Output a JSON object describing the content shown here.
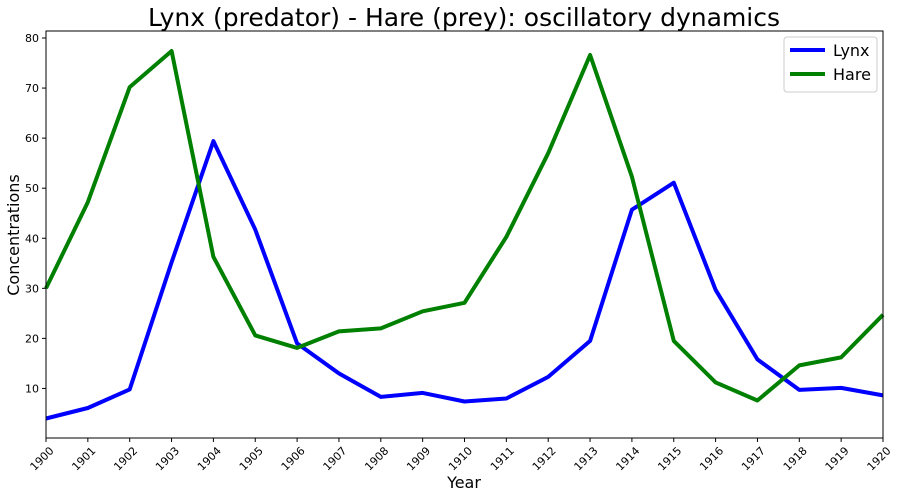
{
  "chart_data": {
    "type": "line",
    "title": "Lynx (predator) - Hare (prey): oscillatory dynamics",
    "xlabel": "Year",
    "ylabel": "Concentrations",
    "x": [
      1900,
      1901,
      1902,
      1903,
      1904,
      1905,
      1906,
      1907,
      1908,
      1909,
      1910,
      1911,
      1912,
      1913,
      1914,
      1915,
      1916,
      1917,
      1918,
      1919,
      1920
    ],
    "x_tick_labels": [
      "1900",
      "1901",
      "1902",
      "1903",
      "1904",
      "1905",
      "1906",
      "1907",
      "1908",
      "1909",
      "1910",
      "1911",
      "1912",
      "1913",
      "1914",
      "1915",
      "1916",
      "1917",
      "1918",
      "1919",
      "1920"
    ],
    "y_ticks": [
      10,
      20,
      30,
      40,
      50,
      60,
      70,
      80
    ],
    "xlim": [
      1900,
      1920
    ],
    "ylim": [
      0.1,
      81.4
    ],
    "grid": false,
    "legend_position": "top-right",
    "series": [
      {
        "name": "Lynx",
        "color": "#0000ff",
        "values": [
          4.0,
          6.1,
          9.8,
          35.2,
          59.4,
          41.7,
          19.0,
          13.0,
          8.3,
          9.1,
          7.4,
          8.0,
          12.3,
          19.5,
          45.7,
          51.1,
          29.7,
          15.8,
          9.7,
          10.1,
          8.6
        ]
      },
      {
        "name": "Hare",
        "color": "#008000",
        "values": [
          30.0,
          47.2,
          70.2,
          77.4,
          36.3,
          20.6,
          18.1,
          21.4,
          22.0,
          25.4,
          27.1,
          40.3,
          57.0,
          76.6,
          52.3,
          19.5,
          11.2,
          7.6,
          14.6,
          16.2,
          24.7
        ]
      }
    ]
  }
}
